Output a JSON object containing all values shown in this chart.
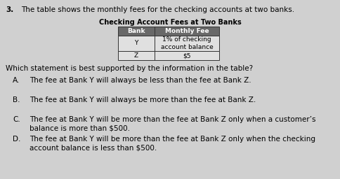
{
  "question_number": "3.",
  "intro_text": "The table shows the monthly fees for the checking accounts at two banks.",
  "table_title": "Checking Account Fees at Two Banks",
  "table_headers": [
    "Bank",
    "Monthly Fee"
  ],
  "table_rows": [
    [
      "Y",
      "1% of checking\naccount balance"
    ],
    [
      "Z",
      "$5"
    ]
  ],
  "header_bg": "#686868",
  "header_text_color": "#ffffff",
  "row_bg": "#e0e0e0",
  "table_border_color": "#333333",
  "question_text": "Which statement is best supported by the information in the table?",
  "options": [
    [
      "A.",
      "The fee at Bank Y will always be less than the fee at Bank Z."
    ],
    [
      "B.",
      "The fee at Bank Y will always be more than the fee at Bank Z."
    ],
    [
      "C.",
      "The fee at Bank Y will be more than the fee at Bank Z only when a customer’s\nbalance is more than $500."
    ],
    [
      "D.",
      "The fee at Bank Y will be more than the fee at Bank Z only when the checking\naccount balance is less than $500."
    ]
  ],
  "bg_color": "#d0d0d0",
  "font_size_intro": 7.5,
  "font_size_table_title": 7.0,
  "font_size_table": 6.5,
  "font_size_question": 7.5,
  "font_size_options": 7.5
}
